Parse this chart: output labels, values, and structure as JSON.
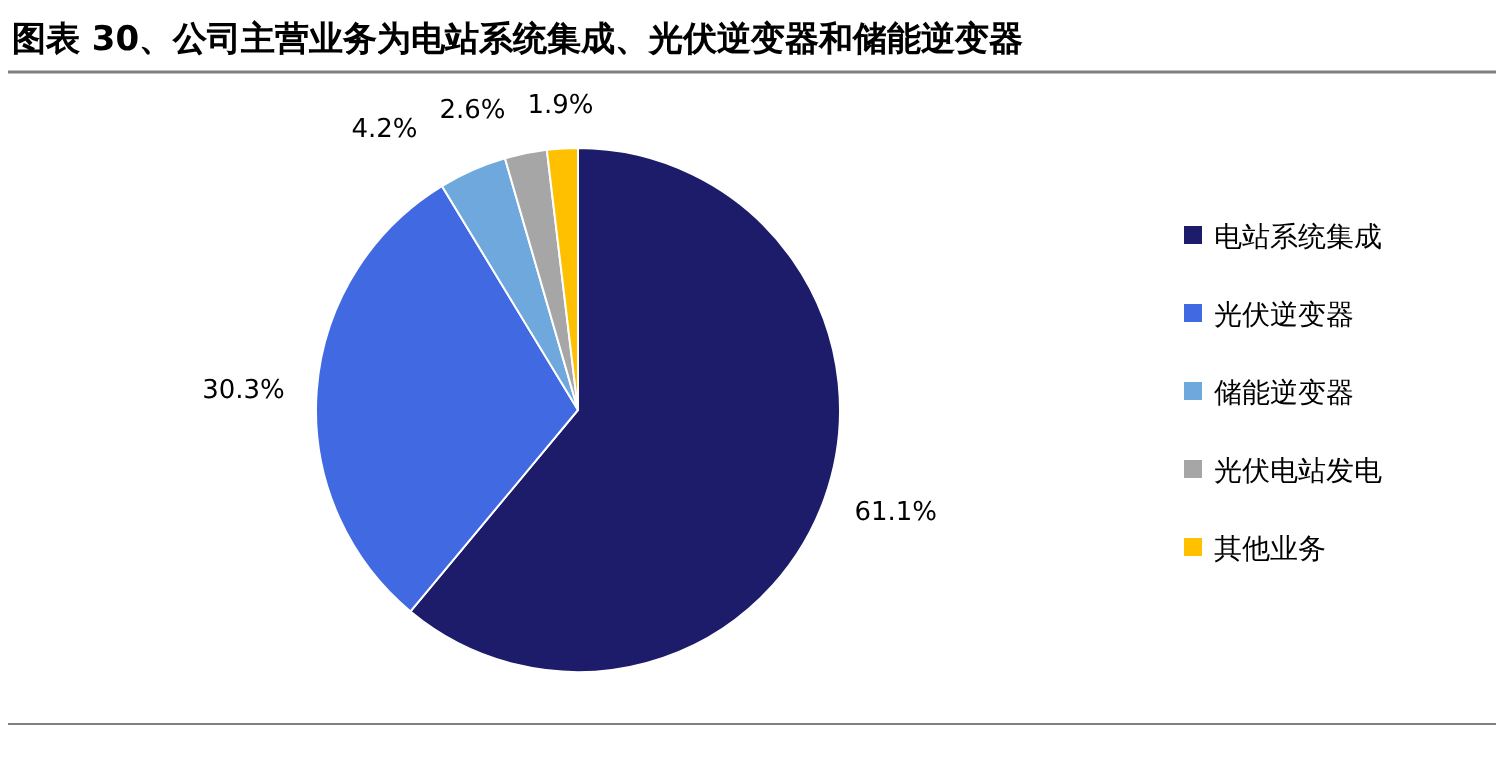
{
  "chart_data": {
    "type": "pie",
    "title": "图表 30、公司主营业务为电站系统集成、光伏逆变器和储能逆变器",
    "categories": [
      "电站系统集成",
      "光伏逆变器",
      "储能逆变器",
      "光伏电站发电",
      "其他业务"
    ],
    "values": [
      61.1,
      30.3,
      4.2,
      2.6,
      1.9
    ],
    "colors": [
      "#1c1c6b",
      "#4169e1",
      "#6fa8dc",
      "#a6a6a6",
      "#ffc000"
    ],
    "value_labels": [
      "61.1%",
      "30.3%",
      "4.2%",
      "2.6%",
      "1.9%"
    ],
    "legend": "right"
  }
}
